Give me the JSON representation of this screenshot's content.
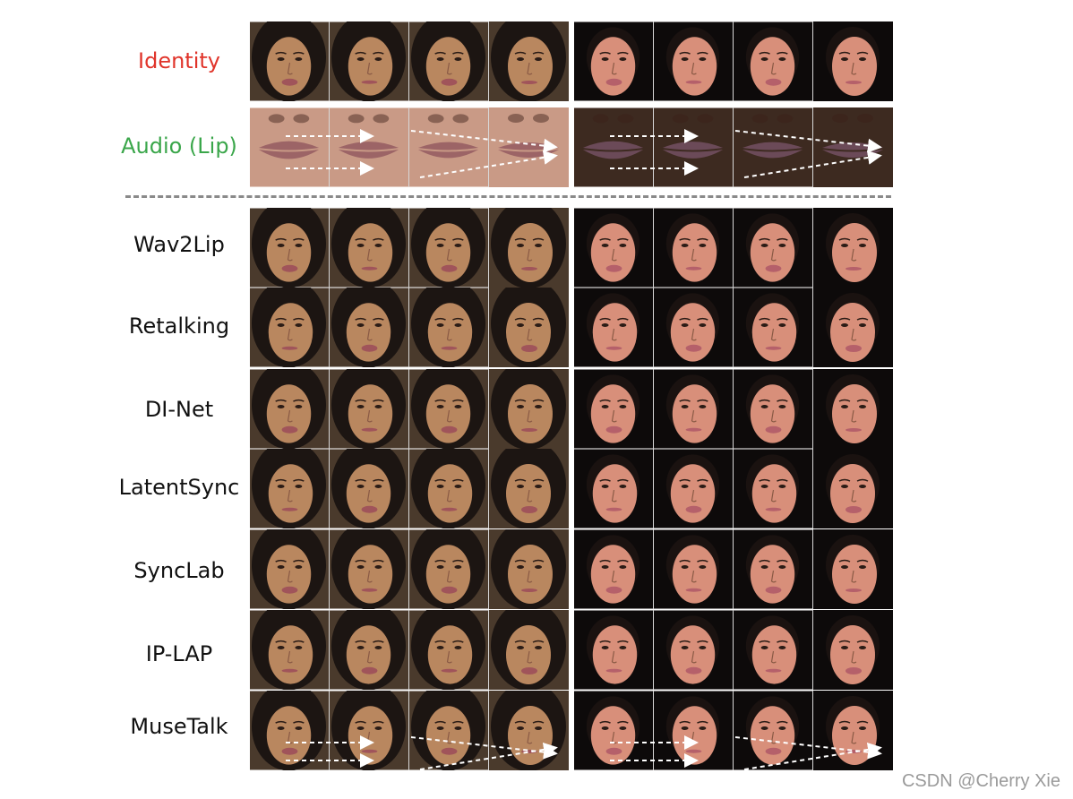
{
  "rows": [
    {
      "label": "Identity",
      "kind": "identity",
      "color": "#e0342a"
    },
    {
      "label": "Audio (Lip)",
      "kind": "lip",
      "color": "#3aa64a"
    },
    {
      "label": "Wav2Lip",
      "kind": "face"
    },
    {
      "label": "Retalking",
      "kind": "face"
    },
    {
      "label": "DI-Net",
      "kind": "face"
    },
    {
      "label": "LatentSync",
      "kind": "face"
    },
    {
      "label": "SyncLab",
      "kind": "face"
    },
    {
      "label": "IP-LAP",
      "kind": "face"
    },
    {
      "label": "MuseTalk",
      "kind": "face"
    }
  ],
  "subjects": [
    {
      "name": "woman-subject",
      "skin": "#b9875f",
      "hair": "#1c1512",
      "bg": "#4a3a2c",
      "lip": "#a0545a",
      "lip_skin": "#c99a86",
      "lip_color": "#9c6466"
    },
    {
      "name": "man-subject",
      "skin": "#d88f7a",
      "hair": "#1a1210",
      "bg": "#0d0a0a",
      "lip": "#b5606a",
      "lip_skin": "#3d2a20",
      "lip_color": "#6b4a58"
    }
  ],
  "frames_per_subject": 4,
  "watermark": "CSDN @Cherry Xie"
}
